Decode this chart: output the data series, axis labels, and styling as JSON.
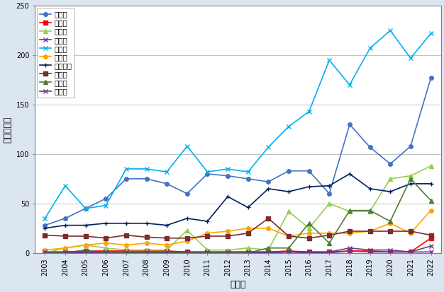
{
  "years": [
    2003,
    2004,
    2005,
    2006,
    2007,
    2008,
    2009,
    2010,
    2011,
    2012,
    2013,
    2014,
    2015,
    2016,
    2017,
    2018,
    2019,
    2020,
    2021,
    2022
  ],
  "series": {
    "福岡県": [
      28,
      35,
      45,
      55,
      75,
      75,
      70,
      60,
      80,
      78,
      75,
      72,
      83,
      83,
      60,
      130,
      107,
      90,
      108,
      177
    ],
    "大分県": [
      1,
      1,
      2,
      2,
      2,
      2,
      2,
      1,
      1,
      1,
      1,
      1,
      2,
      1,
      1,
      2,
      2,
      1,
      1,
      15
    ],
    "佐賀県": [
      0,
      5,
      8,
      5,
      3,
      3,
      3,
      23,
      3,
      3,
      5,
      3,
      42,
      25,
      50,
      42,
      42,
      75,
      78,
      88
    ],
    "長崎県": [
      0,
      0,
      0,
      0,
      0,
      0,
      0,
      0,
      0,
      0,
      0,
      0,
      1,
      0,
      0,
      2,
      1,
      1,
      1,
      1
    ],
    "熊本県": [
      35,
      68,
      45,
      48,
      85,
      85,
      82,
      108,
      82,
      85,
      82,
      107,
      128,
      143,
      195,
      170,
      207,
      225,
      197,
      222
    ],
    "宮崎県": [
      3,
      5,
      8,
      10,
      8,
      10,
      8,
      12,
      20,
      22,
      25,
      25,
      17,
      20,
      20,
      20,
      22,
      30,
      20,
      43
    ],
    "鹿児島県": [
      25,
      28,
      28,
      30,
      30,
      30,
      28,
      35,
      32,
      57,
      46,
      65,
      62,
      67,
      68,
      80,
      65,
      62,
      70,
      70
    ],
    "沖縄県": [
      18,
      17,
      17,
      15,
      18,
      16,
      15,
      15,
      17,
      17,
      20,
      35,
      17,
      15,
      18,
      22,
      22,
      22,
      22,
      18
    ],
    "山口県": [
      0,
      0,
      3,
      0,
      0,
      0,
      0,
      0,
      0,
      0,
      0,
      5,
      5,
      30,
      10,
      43,
      43,
      32,
      75,
      53
    ],
    "その他": [
      1,
      1,
      1,
      1,
      1,
      1,
      1,
      1,
      1,
      1,
      1,
      1,
      1,
      1,
      1,
      5,
      3,
      3,
      1,
      7
    ]
  },
  "colors": {
    "福岡県": "#4472C4",
    "大分県": "#FF0000",
    "佐賀県": "#92D050",
    "長崎県": "#7030A0",
    "熊本県": "#00B0F0",
    "宮崎県": "#FFA500",
    "鹿児島県": "#002060",
    "沖縄県": "#7B2C2C",
    "山口県": "#507E32",
    "その他": "#6B3A7D"
  },
  "markers": {
    "福岡県": "o",
    "大分県": "s",
    "佐賀県": "^",
    "長崎県": "x",
    "熊本県": "x",
    "宮崎県": "o",
    "鹿児島県": "+",
    "沖縄県": "s",
    "山口県": "^",
    "その他": "x"
  },
  "marker_sizes": {
    "福岡県": 4,
    "大分県": 4,
    "佐賀県": 4,
    "長崎県": 5,
    "熊本県": 5,
    "宮崎県": 4,
    "鹿児島県": 5,
    "沖縄県": 4,
    "山口県": 4,
    "その他": 5
  },
  "ylabel": "観察個体数",
  "xlabel": "調査年",
  "ylim": [
    0,
    250
  ],
  "yticks": [
    0,
    50,
    100,
    150,
    200,
    250
  ],
  "bg_color": "#DCE6F1",
  "plot_bg": "#FFFFFF",
  "grid_color": "#AAAAAA",
  "legend_fontsize": 7.5,
  "tick_fontsize": 7,
  "axis_label_fontsize": 9
}
